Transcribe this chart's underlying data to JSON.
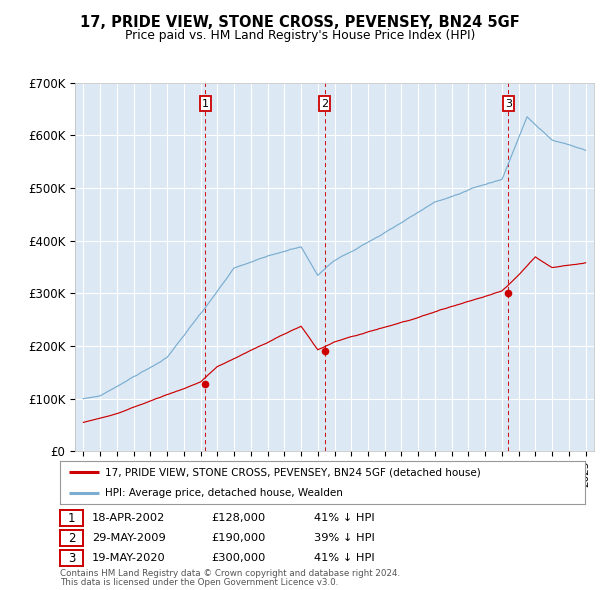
{
  "title": "17, PRIDE VIEW, STONE CROSS, PEVENSEY, BN24 5GF",
  "subtitle": "Price paid vs. HM Land Registry's House Price Index (HPI)",
  "legend_line1": "17, PRIDE VIEW, STONE CROSS, PEVENSEY, BN24 5GF (detached house)",
  "legend_line2": "HPI: Average price, detached house, Wealden",
  "footnote1": "Contains HM Land Registry data © Crown copyright and database right 2024.",
  "footnote2": "This data is licensed under the Open Government Licence v3.0.",
  "sales": [
    {
      "num": 1,
      "date": "18-APR-2002",
      "price": "£128,000",
      "pct": "41% ↓ HPI",
      "year": 2002.29,
      "price_val": 128000
    },
    {
      "num": 2,
      "date": "29-MAY-2009",
      "price": "£190,000",
      "pct": "39% ↓ HPI",
      "year": 2009.41,
      "price_val": 190000
    },
    {
      "num": 3,
      "date": "19-MAY-2020",
      "price": "£300,000",
      "pct": "41% ↓ HPI",
      "year": 2020.38,
      "price_val": 300000
    }
  ],
  "ylim": [
    0,
    700000
  ],
  "xlim": [
    1994.5,
    2025.5
  ],
  "bg_color": "#dce9f5",
  "red_color": "#cc0000",
  "blue_color": "#7aadcf",
  "grid_color": "#ffffff"
}
